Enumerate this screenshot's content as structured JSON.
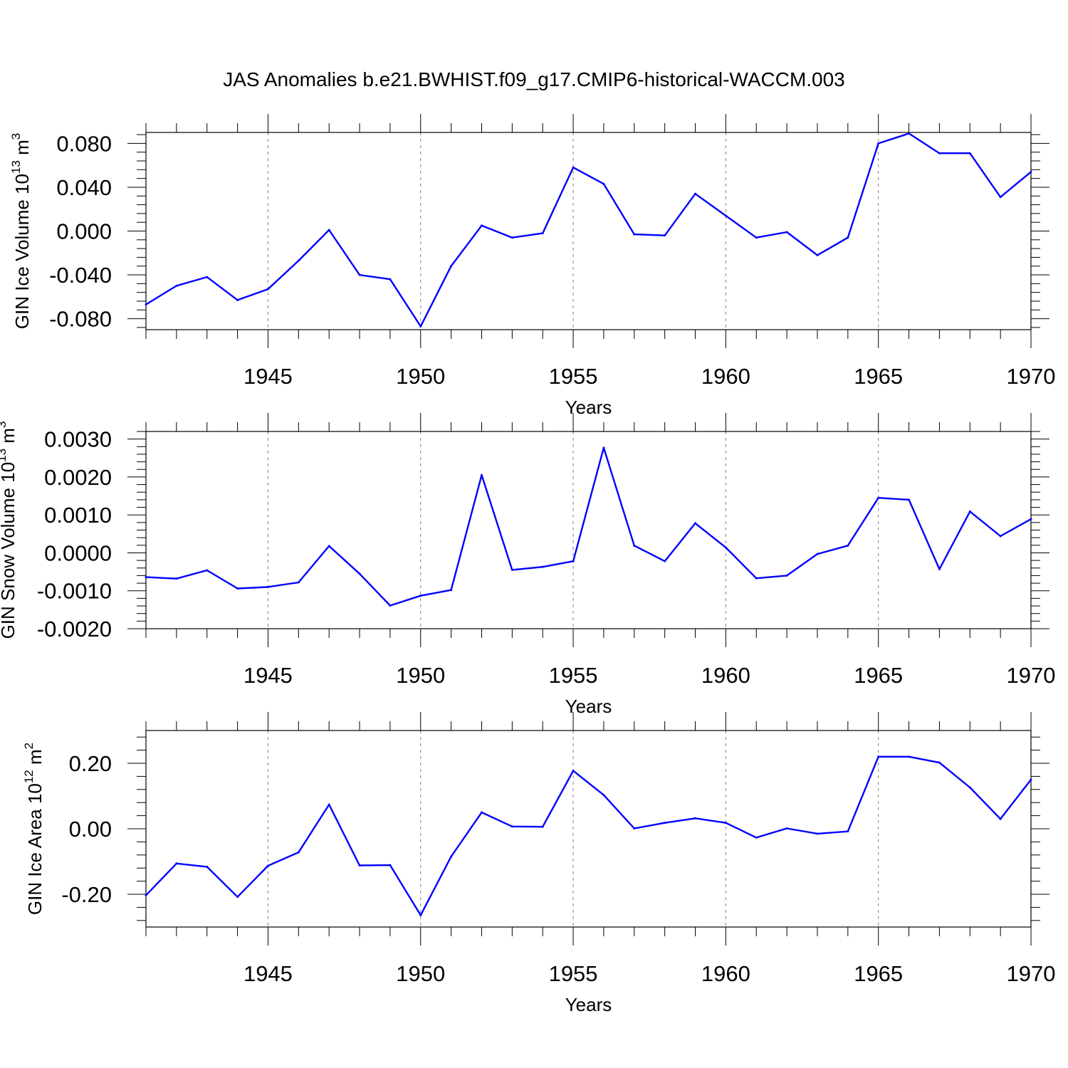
{
  "chart_data": {
    "title": "JAS Anomalies b.e21.BWHIST.f09_g17.CMIP6-historical-WACCM.003",
    "colors": {
      "line": "#0000ff",
      "axis": "#000000",
      "grid": "#808080"
    },
    "panels": [
      {
        "type": "line",
        "ylabel": "GIN Ice Volume 10",
        "ylabel_exp": "13",
        "ylabel_unit": " m",
        "ylabel_unit_exp": "3",
        "xlabel": "Years",
        "xlim": [
          1941,
          1970
        ],
        "ylim": [
          -0.09,
          0.09
        ],
        "yticks": [
          -0.08,
          -0.04,
          0.0,
          0.04,
          0.08
        ],
        "ytick_labels": [
          "-0.080",
          "-0.040",
          "0.000",
          "0.040",
          "0.080"
        ],
        "xticks": [
          1945,
          1950,
          1955,
          1960,
          1965,
          1970
        ],
        "xtick_labels": [
          "1945",
          "1950",
          "1955",
          "1960",
          "1965",
          "1970"
        ],
        "x": [
          1941,
          1942,
          1943,
          1944,
          1945,
          1946,
          1947,
          1948,
          1949,
          1950,
          1951,
          1952,
          1953,
          1954,
          1955,
          1956,
          1957,
          1958,
          1959,
          1960,
          1961,
          1962,
          1963,
          1964,
          1965,
          1966,
          1967,
          1968,
          1969,
          1970
        ],
        "values": [
          -0.067,
          -0.05,
          -0.042,
          -0.063,
          -0.053,
          -0.027,
          0.001,
          -0.04,
          -0.044,
          -0.087,
          -0.032,
          0.005,
          -0.006,
          -0.002,
          0.058,
          0.043,
          -0.003,
          -0.004,
          0.034,
          0.014,
          -0.006,
          -0.001,
          -0.022,
          -0.006,
          0.08,
          0.089,
          0.071,
          0.071,
          0.031,
          0.054
        ]
      },
      {
        "type": "line",
        "ylabel": "GIN Snow Volume 10",
        "ylabel_exp": "13",
        "ylabel_unit": " m",
        "ylabel_unit_exp": "3",
        "xlabel": "Years",
        "xlim": [
          1941,
          1970
        ],
        "ylim": [
          -0.002,
          0.0032
        ],
        "yticks": [
          -0.002,
          -0.001,
          0.0,
          0.001,
          0.002,
          0.003
        ],
        "ytick_labels": [
          "-0.0020",
          "-0.0010",
          "0.0000",
          "0.0010",
          "0.0020",
          "0.0030"
        ],
        "xticks": [
          1945,
          1950,
          1955,
          1960,
          1965,
          1970
        ],
        "xtick_labels": [
          "1945",
          "1950",
          "1955",
          "1960",
          "1965",
          "1970"
        ],
        "x": [
          1941,
          1942,
          1943,
          1944,
          1945,
          1946,
          1947,
          1948,
          1949,
          1950,
          1951,
          1952,
          1953,
          1954,
          1955,
          1956,
          1957,
          1958,
          1959,
          1960,
          1961,
          1962,
          1963,
          1964,
          1965,
          1966,
          1967,
          1968,
          1969,
          1970
        ],
        "values": [
          -0.00064,
          -0.00068,
          -0.00046,
          -0.00094,
          -0.0009,
          -0.00078,
          0.00018,
          -0.00055,
          -0.00139,
          -0.00113,
          -0.00098,
          0.00205,
          -0.00045,
          -0.00037,
          -0.00022,
          0.00277,
          0.00019,
          -0.00022,
          0.00078,
          0.00014,
          -0.00067,
          -0.0006,
          -3e-05,
          0.00019,
          0.00145,
          0.0014,
          -0.00043,
          0.00109,
          0.00044,
          0.00089
        ]
      },
      {
        "type": "line",
        "ylabel": "GIN Ice Area 10",
        "ylabel_exp": "12",
        "ylabel_unit": " m",
        "ylabel_unit_exp": "2",
        "xlabel": "Years",
        "xlim": [
          1941,
          1970
        ],
        "ylim": [
          -0.3,
          0.3
        ],
        "yticks": [
          -0.2,
          0.0,
          0.2
        ],
        "ytick_labels": [
          "-0.20",
          "0.00",
          "0.20"
        ],
        "xticks": [
          1945,
          1950,
          1955,
          1960,
          1965,
          1970
        ],
        "xtick_labels": [
          "1945",
          "1950",
          "1955",
          "1960",
          "1965",
          "1970"
        ],
        "x": [
          1941,
          1942,
          1943,
          1944,
          1945,
          1946,
          1947,
          1948,
          1949,
          1950,
          1951,
          1952,
          1953,
          1954,
          1955,
          1956,
          1957,
          1958,
          1959,
          1960,
          1961,
          1962,
          1963,
          1964,
          1965,
          1966,
          1967,
          1968,
          1969,
          1970
        ],
        "values": [
          -0.203,
          -0.106,
          -0.116,
          -0.208,
          -0.113,
          -0.072,
          0.074,
          -0.112,
          -0.111,
          -0.264,
          -0.085,
          0.05,
          0.007,
          0.006,
          0.177,
          0.103,
          0.001,
          0.018,
          0.032,
          0.018,
          -0.027,
          0.001,
          -0.015,
          -0.008,
          0.22,
          0.22,
          0.202,
          0.126,
          0.03,
          0.15
        ]
      }
    ]
  }
}
